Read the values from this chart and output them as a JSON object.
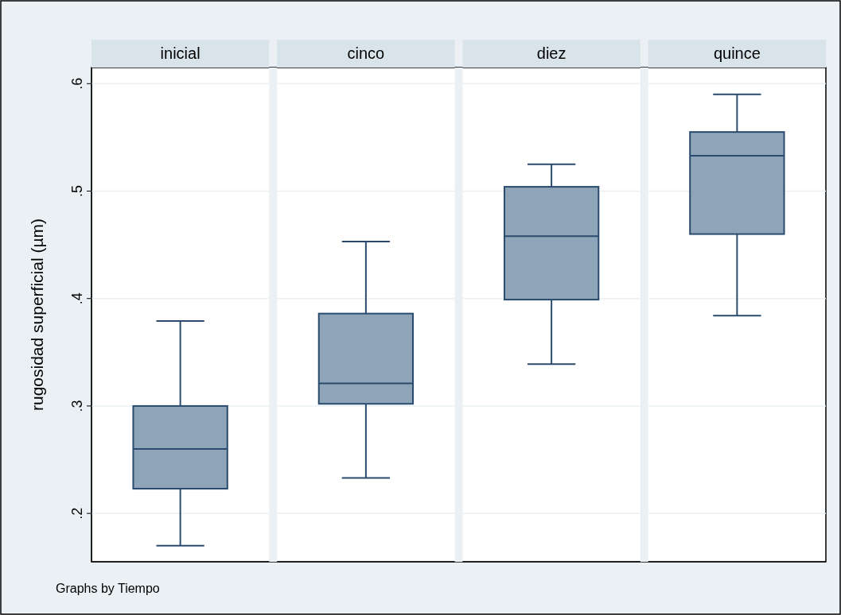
{
  "chart_data": {
    "type": "box",
    "ylabel": "rugosidad superficial (µm)",
    "categories": [
      "inicial",
      "cinco",
      "diez",
      "quince"
    ],
    "boxes": [
      {
        "low": 0.17,
        "q1": 0.223,
        "median": 0.26,
        "q3": 0.3,
        "high": 0.379
      },
      {
        "low": 0.233,
        "q1": 0.302,
        "median": 0.321,
        "q3": 0.386,
        "high": 0.453
      },
      {
        "low": 0.339,
        "q1": 0.399,
        "median": 0.458,
        "q3": 0.504,
        "high": 0.525
      },
      {
        "low": 0.384,
        "q1": 0.46,
        "median": 0.533,
        "q3": 0.555,
        "high": 0.59
      }
    ],
    "color": "#8ea4b9",
    "ylim": [
      0.155,
      0.615
    ],
    "yticks": [
      {
        "value": 0.2,
        "label": ".2"
      },
      {
        "value": 0.3,
        "label": ".3"
      },
      {
        "value": 0.4,
        "label": ".4"
      },
      {
        "value": 0.5,
        "label": ".5"
      },
      {
        "value": 0.6,
        "label": ".6"
      }
    ],
    "grid": "y",
    "annotations": [
      "Graphs by Tiempo"
    ]
  }
}
